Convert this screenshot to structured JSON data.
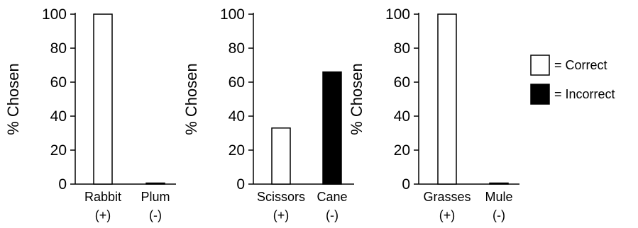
{
  "colors": {
    "correct": "#ffffff",
    "incorrect": "#000000",
    "stroke": "#000000"
  },
  "legend": [
    {
      "key": "correct",
      "label": "= Correct"
    },
    {
      "key": "incorrect",
      "label": "= Incorrect"
    }
  ],
  "chart_data": [
    {
      "type": "bar",
      "title": "",
      "ylabel": "% Chosen",
      "xlabel": "",
      "ylim": [
        0,
        100
      ],
      "yticks": [
        "0",
        "20",
        "40",
        "60",
        "80",
        "100"
      ],
      "grid": false,
      "legend_position": "right",
      "categories": [
        {
          "name": "Rabbit",
          "sign": "(+)",
          "value": 100,
          "status": "correct"
        },
        {
          "name": "Plum",
          "sign": "(-)",
          "value": 0.5,
          "status": "incorrect"
        }
      ]
    },
    {
      "type": "bar",
      "title": "",
      "ylabel": "% Chosen",
      "xlabel": "",
      "ylim": [
        0,
        100
      ],
      "yticks": [
        "0",
        "20",
        "40",
        "60",
        "80",
        "100"
      ],
      "grid": false,
      "legend_position": "right",
      "categories": [
        {
          "name": "Scissors",
          "sign": "(+)",
          "value": 33,
          "status": "correct"
        },
        {
          "name": "Cane",
          "sign": "(-)",
          "value": 66,
          "status": "incorrect"
        }
      ]
    },
    {
      "type": "bar",
      "title": "",
      "ylabel": "% Chosen",
      "xlabel": "",
      "ylim": [
        0,
        100
      ],
      "yticks": [
        "0",
        "20",
        "40",
        "60",
        "80",
        "100"
      ],
      "grid": false,
      "legend_position": "right",
      "categories": [
        {
          "name": "Grasses",
          "sign": "(+)",
          "value": 100,
          "status": "correct"
        },
        {
          "name": "Mule",
          "sign": "(-)",
          "value": 0.5,
          "status": "incorrect"
        }
      ]
    }
  ]
}
